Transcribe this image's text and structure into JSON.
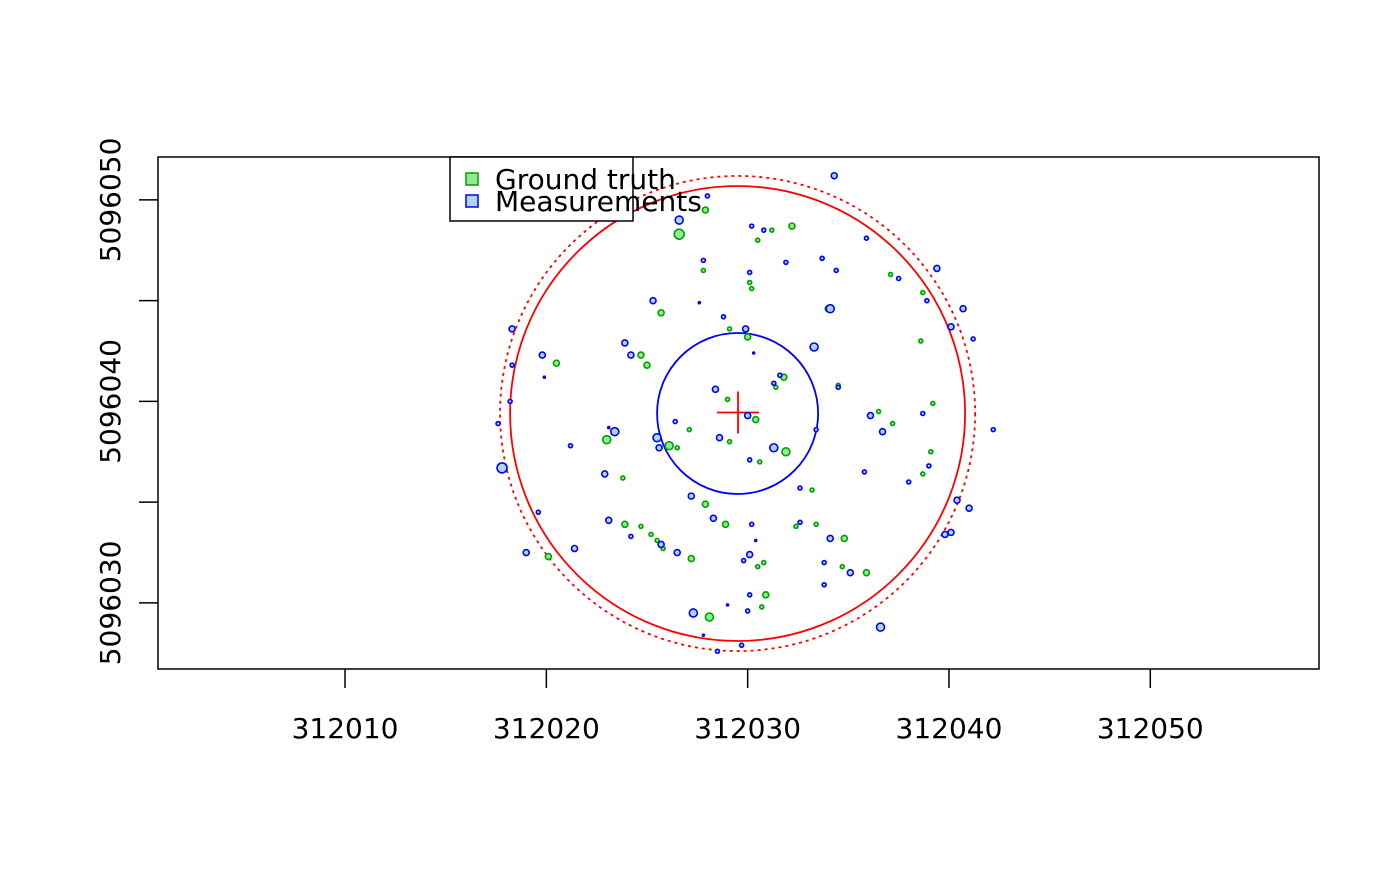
{
  "chart_data": {
    "type": "scatter",
    "xlim": [
      312000.71,
      312058.38
    ],
    "ylim": [
      5096026.72,
      5096052.13
    ],
    "xticks": [
      312010,
      312020,
      312030,
      312040,
      312050
    ],
    "yticks": [
      5096030,
      {
        "value": 5096035,
        "label": null
      },
      5096040,
      {
        "value": 5096045,
        "label": null
      },
      5096050
    ],
    "legend": {
      "position": "top"
    },
    "series": [
      {
        "name": "Ground truth",
        "color": "#00a000",
        "fill": "#90ee90",
        "x": [
          312026.6,
          312027.9,
          312032.2,
          312030.5,
          312031.2,
          312027.8,
          312030.1,
          312030.2,
          312025.7,
          312034.0,
          312029.1,
          312030.0,
          312037.1,
          312038.7,
          312038.6,
          312024.7,
          312025.0,
          312020.5,
          312031.8,
          312031.4,
          312034.5,
          312029.0,
          312030.4,
          312036.5,
          312037.2,
          312039.2,
          312027.1,
          312026.1,
          312026.5,
          312023.0,
          312029.1,
          312031.9,
          312030.6,
          312039.1,
          312038.7,
          312023.8,
          312033.2,
          312027.9,
          312023.9,
          312024.7,
          312028.9,
          312032.4,
          312033.4,
          312025.2,
          312025.5,
          312025.8,
          312020.1,
          312027.2,
          312034.8,
          312030.8,
          312030.5,
          312034.7,
          312035.9,
          312030.9,
          312030.7,
          312028.1
        ],
        "values": [
          5096048.3,
          5096049.5,
          5096048.7,
          5096048.0,
          5096048.5,
          5096046.5,
          5096045.9,
          5096045.6,
          5096044.4,
          5096044.6,
          5096043.6,
          5096043.2,
          5096046.3,
          5096045.4,
          5096043.0,
          5096042.3,
          5096041.8,
          5096041.9,
          5096041.2,
          5096040.7,
          5096040.8,
          5096040.1,
          5096039.1,
          5096039.5,
          5096038.9,
          5096039.9,
          5096038.6,
          5096037.8,
          5096037.7,
          5096038.1,
          5096038.0,
          5096037.5,
          5096037.0,
          5096037.5,
          5096036.4,
          5096036.2,
          5096035.6,
          5096034.9,
          5096033.9,
          5096033.8,
          5096033.9,
          5096033.8,
          5096033.9,
          5096033.4,
          5096033.1,
          5096032.7,
          5096032.3,
          5096032.2,
          5096033.2,
          5096032.0,
          5096031.8,
          5096031.8,
          5096031.5,
          5096030.4,
          5096029.8,
          5096029.3
        ],
        "sizes": [
          5,
          3,
          3,
          2,
          2,
          2,
          2,
          2,
          3,
          3,
          2,
          3,
          2,
          2,
          2,
          3,
          3,
          3,
          3,
          2,
          2,
          2,
          3,
          2,
          2,
          2,
          2,
          4,
          2,
          4,
          2,
          4,
          2,
          2,
          2,
          2,
          2,
          3,
          3,
          2,
          3,
          2,
          2,
          2,
          2,
          2,
          3,
          3,
          3,
          2,
          2,
          2,
          3,
          3,
          2,
          4
        ]
      },
      {
        "name": "Measurements",
        "color": "#0000ff",
        "fill": "#add8e6",
        "x": [
          312034.3,
          312026.6,
          312028.0,
          312030.2,
          312030.8,
          312027.8,
          312031.9,
          312030.1,
          312033.7,
          312034.4,
          312035.9,
          312039.4,
          312037.5,
          312038.9,
          312040.7,
          312040.1,
          312041.2,
          312025.3,
          312027.6,
          312034.1,
          312028.8,
          312029.9,
          312018.3,
          312019.8,
          312018.3,
          312019.9,
          312023.9,
          312024.2,
          312033.3,
          312030.3,
          312031.6,
          312031.3,
          312034.5,
          312028.4,
          312018.2,
          312017.6,
          312017.8,
          312023.4,
          312023.1,
          312021.2,
          312025.5,
          312025.6,
          312026.4,
          312028.6,
          312030.0,
          312031.3,
          312030.1,
          312033.4,
          312036.1,
          312036.7,
          312038.7,
          312042.2,
          312039.0,
          312038.0,
          312040.4,
          312041.0,
          312040.1,
          312039.8,
          312035.8,
          312032.6,
          312022.9,
          312027.2,
          312028.3,
          312030.2,
          312032.6,
          312023.1,
          312019.6,
          312019.0,
          312021.4,
          312024.2,
          312025.7,
          312026.5,
          312030.4,
          312034.1,
          312030.1,
          312029.8,
          312033.8,
          312035.1,
          312033.8,
          312030.1,
          312030.0,
          312029.0,
          312027.3,
          312036.6,
          312027.8,
          312028.5,
          312029.7
        ],
        "values": [
          5096051.2,
          5096049.0,
          5096050.2,
          5096048.7,
          5096048.5,
          5096047.0,
          5096046.9,
          5096046.4,
          5096047.1,
          5096046.5,
          5096048.1,
          5096046.6,
          5096046.1,
          5096045.0,
          5096044.6,
          5096043.7,
          5096043.1,
          5096045.0,
          5096044.9,
          5096044.6,
          5096044.2,
          5096043.6,
          5096043.6,
          5096042.3,
          5096041.8,
          5096041.2,
          5096042.9,
          5096042.3,
          5096042.7,
          5096042.4,
          5096041.3,
          5096040.9,
          5096040.7,
          5096040.6,
          5096040.0,
          5096038.9,
          5096036.7,
          5096038.5,
          5096038.7,
          5096037.8,
          5096038.2,
          5096037.7,
          5096039.0,
          5096038.2,
          5096039.3,
          5096037.7,
          5096037.1,
          5096038.6,
          5096039.3,
          5096038.5,
          5096039.4,
          5096038.6,
          5096036.8,
          5096036.0,
          5096035.1,
          5096034.7,
          5096033.5,
          5096033.4,
          5096036.5,
          5096035.7,
          5096036.4,
          5096035.3,
          5096034.2,
          5096033.9,
          5096034.0,
          5096034.1,
          5096034.5,
          5096032.5,
          5096032.7,
          5096033.3,
          5096032.9,
          5096032.5,
          5096033.1,
          5096033.2,
          5096032.4,
          5096032.1,
          5096032.0,
          5096031.5,
          5096030.9,
          5096030.4,
          5096029.6,
          5096029.9,
          5096029.5,
          5096028.8,
          5096028.4,
          5096027.6,
          5096027.9
        ],
        "sizes": [
          3,
          4,
          2,
          2,
          2,
          2,
          2,
          2,
          2,
          2,
          2,
          3,
          2,
          2,
          3,
          3,
          2,
          3,
          1,
          4,
          2,
          3,
          3,
          3,
          2,
          1,
          3,
          3,
          4,
          1,
          2,
          2,
          2,
          3,
          2,
          2,
          5,
          4,
          1,
          2,
          4,
          3,
          2,
          3,
          3,
          4,
          2,
          2,
          3,
          3,
          2,
          2,
          2,
          2,
          3,
          3,
          3,
          3,
          2,
          2,
          3,
          3,
          3,
          2,
          2,
          3,
          2,
          3,
          3,
          2,
          3,
          3,
          1,
          3,
          3,
          2,
          2,
          3,
          2,
          2,
          2,
          1,
          4,
          4,
          1,
          2,
          2
        ]
      }
    ],
    "circles": [
      {
        "x": 312029.5,
        "y": 5096039.4,
        "r": 11.3,
        "color": "#ff0000",
        "dash": false
      },
      {
        "x": 312029.5,
        "y": 5096039.4,
        "r": 11.8,
        "color": "#ff0000",
        "dash": true
      },
      {
        "x": 312029.5,
        "y": 5096039.4,
        "r": 4.0,
        "color": "#0000ff",
        "dash": false
      }
    ],
    "cross": {
      "x": 312029.52,
      "y": 5096039.45,
      "color": "#ff0000"
    }
  }
}
